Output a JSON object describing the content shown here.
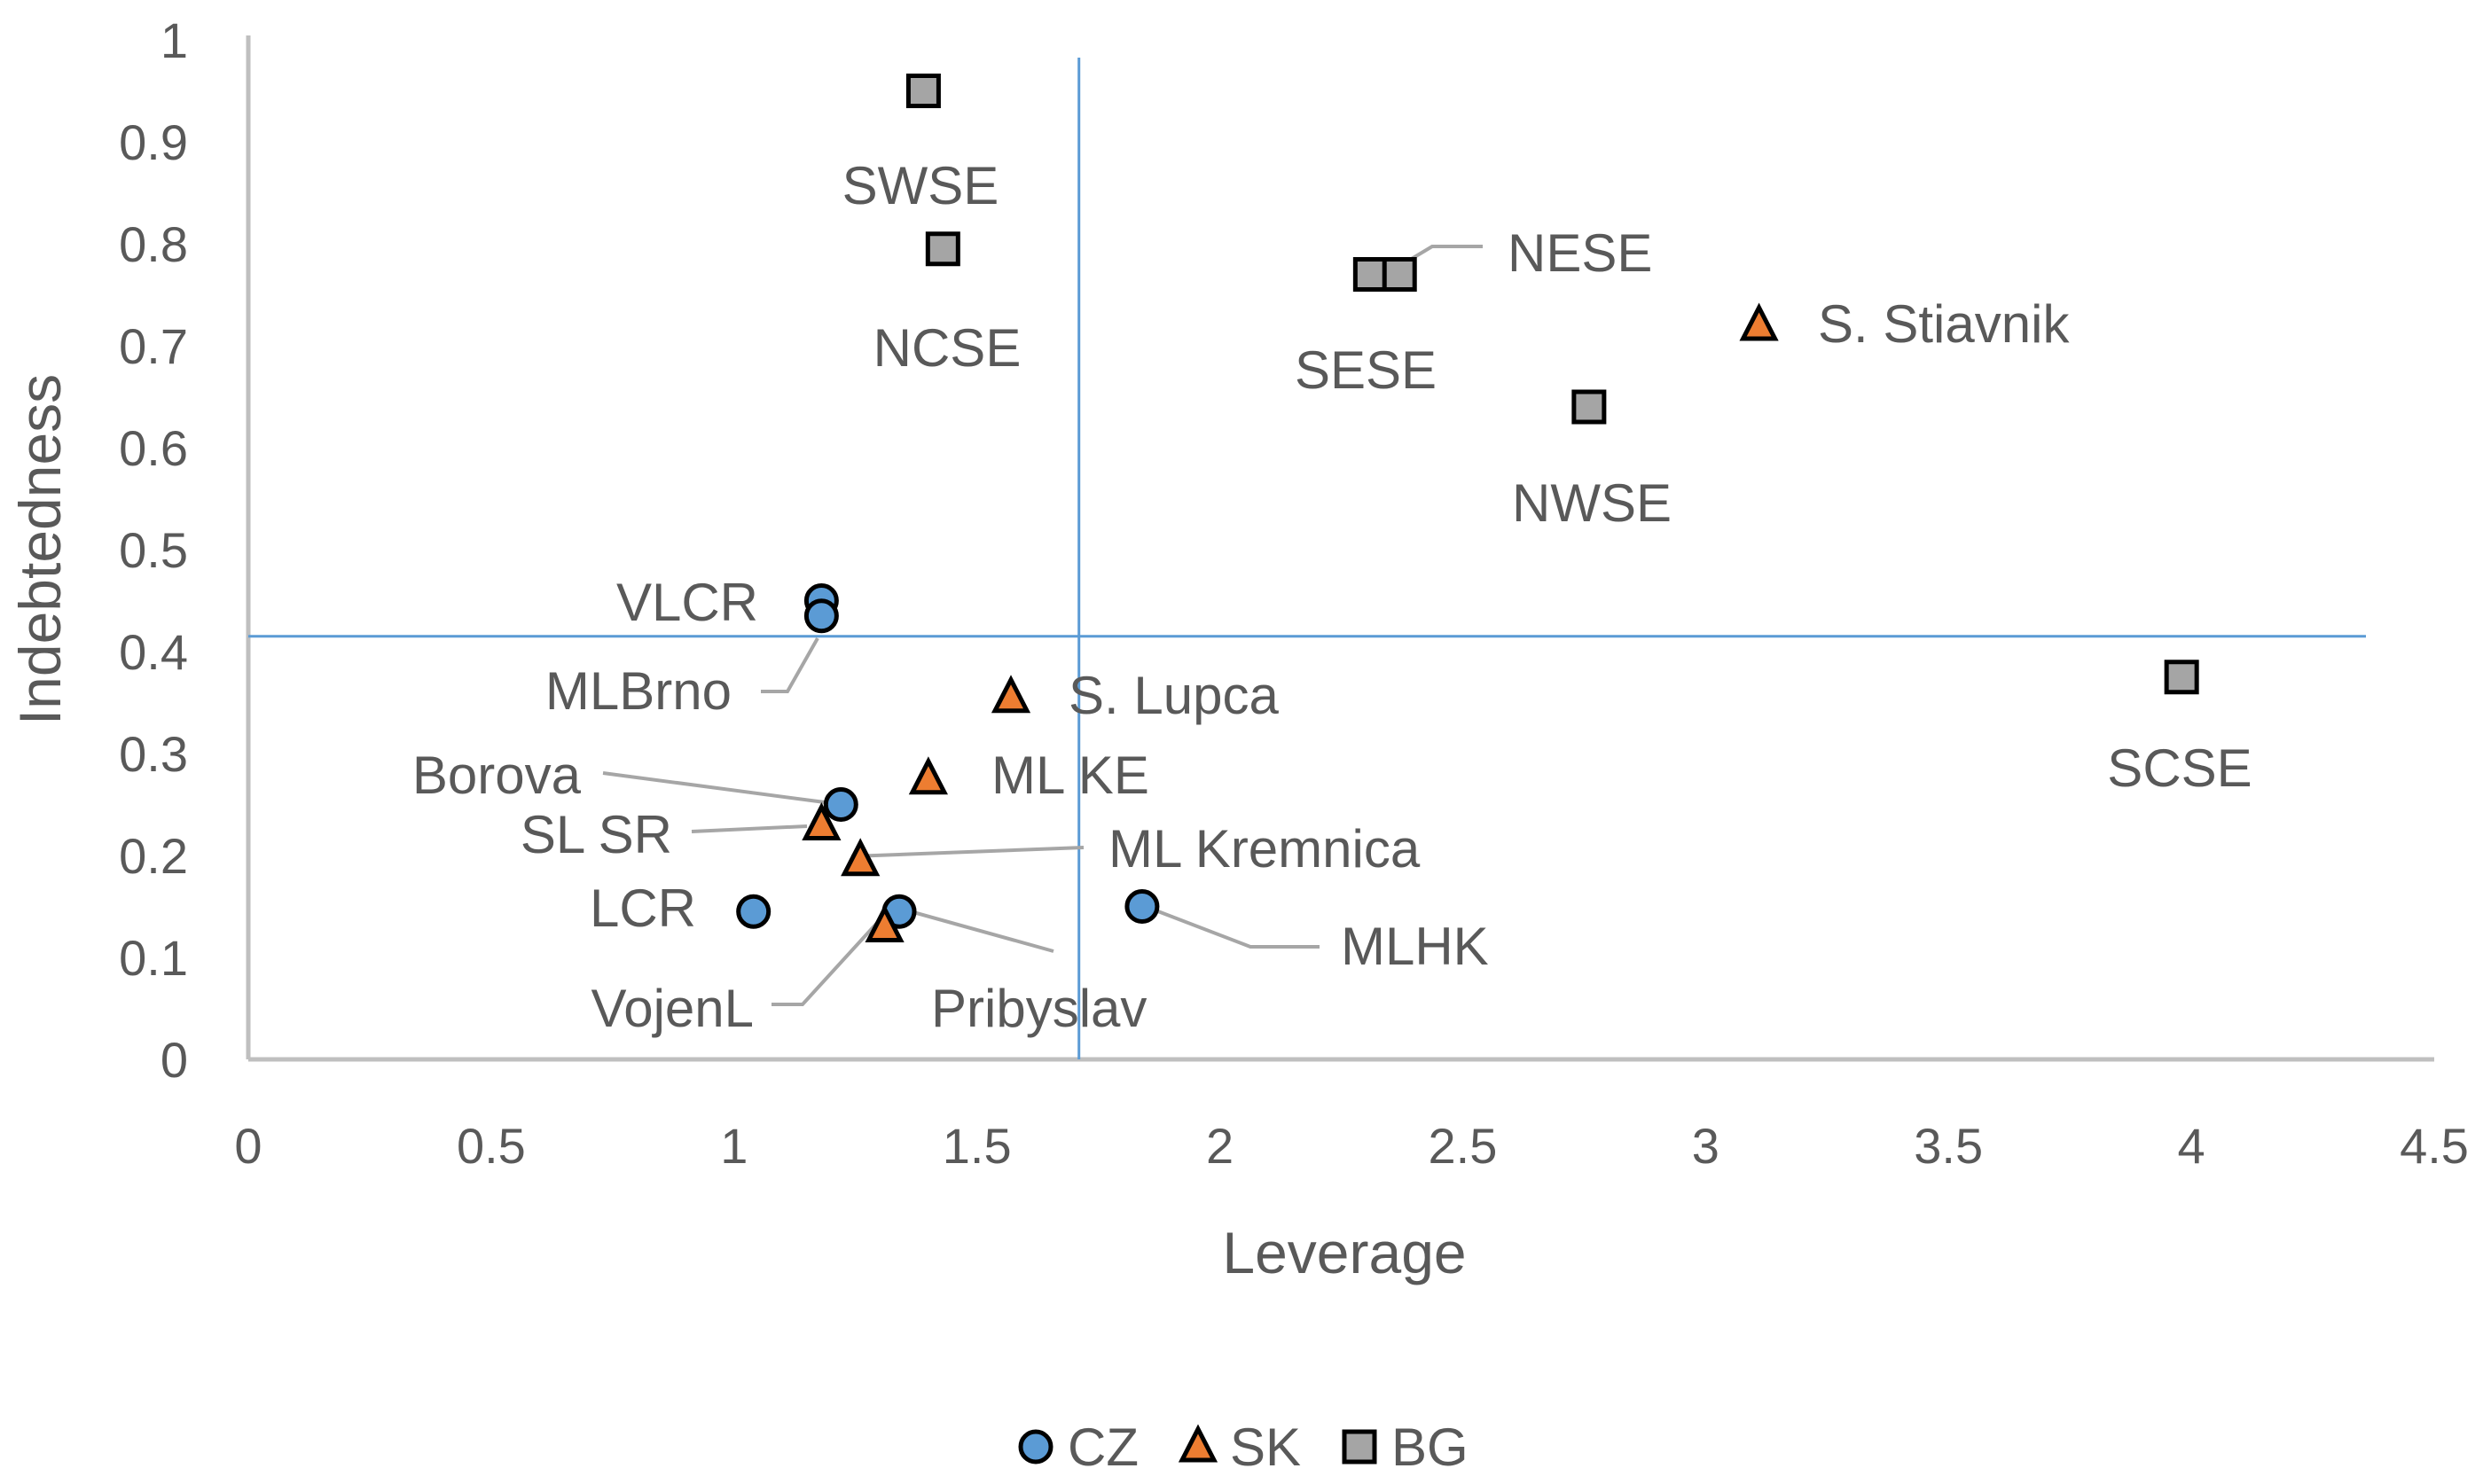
{
  "chart_data": {
    "type": "scatter",
    "title": "",
    "xlabel": "Leverage",
    "ylabel": "Indebtedness",
    "xlim": [
      0,
      4.5
    ],
    "ylim": [
      0,
      1
    ],
    "x_ticks": [
      "0",
      "0.5",
      "1",
      "1.5",
      "2",
      "2.5",
      "3",
      "3.5",
      "4",
      "4.5"
    ],
    "y_ticks": [
      "0",
      "0.1",
      "0.2",
      "0.3",
      "0.4",
      "0.5",
      "0.6",
      "0.7",
      "0.8",
      "0.9",
      "1"
    ],
    "reference_lines": {
      "x": 1.71,
      "y": 0.415,
      "color": "#5b9bd5"
    },
    "legend": {
      "position": "bottom"
    },
    "series": [
      {
        "name": "CZ",
        "marker": "circle",
        "color": "#5b9bd5",
        "points": [
          {
            "label": "VLCR",
            "x": 1.18,
            "y": 0.45
          },
          {
            "label": "MLBrno",
            "x": 1.18,
            "y": 0.435
          },
          {
            "label": "Borova",
            "x": 1.22,
            "y": 0.25
          },
          {
            "label": "LCR",
            "x": 1.04,
            "y": 0.145
          },
          {
            "label": "Pribyslav",
            "x": 1.34,
            "y": 0.145
          },
          {
            "label": "MLHK",
            "x": 1.84,
            "y": 0.15
          }
        ]
      },
      {
        "name": "SK",
        "marker": "triangle",
        "color": "#ed7d31",
        "points": [
          {
            "label": "S. Stiavnik",
            "x": 3.11,
            "y": 0.72
          },
          {
            "label": "S. Lupca",
            "x": 1.57,
            "y": 0.355
          },
          {
            "label": "ML KE",
            "x": 1.4,
            "y": 0.275
          },
          {
            "label": "SL SR",
            "x": 1.18,
            "y": 0.23
          },
          {
            "label": "ML Kremnica",
            "x": 1.26,
            "y": 0.195
          },
          {
            "label": "VojenL",
            "x": 1.31,
            "y": 0.13
          }
        ]
      },
      {
        "name": "BG",
        "marker": "square",
        "color": "#a5a5a5",
        "points": [
          {
            "label": "SWSE",
            "x": 1.39,
            "y": 0.95
          },
          {
            "label": "NCSE",
            "x": 1.43,
            "y": 0.795
          },
          {
            "label": "SESE",
            "x": 2.31,
            "y": 0.77
          },
          {
            "label": "NESE",
            "x": 2.37,
            "y": 0.77
          },
          {
            "label": "NWSE",
            "x": 2.76,
            "y": 0.64
          },
          {
            "label": "SCSE",
            "x": 3.98,
            "y": 0.375
          }
        ]
      }
    ]
  }
}
